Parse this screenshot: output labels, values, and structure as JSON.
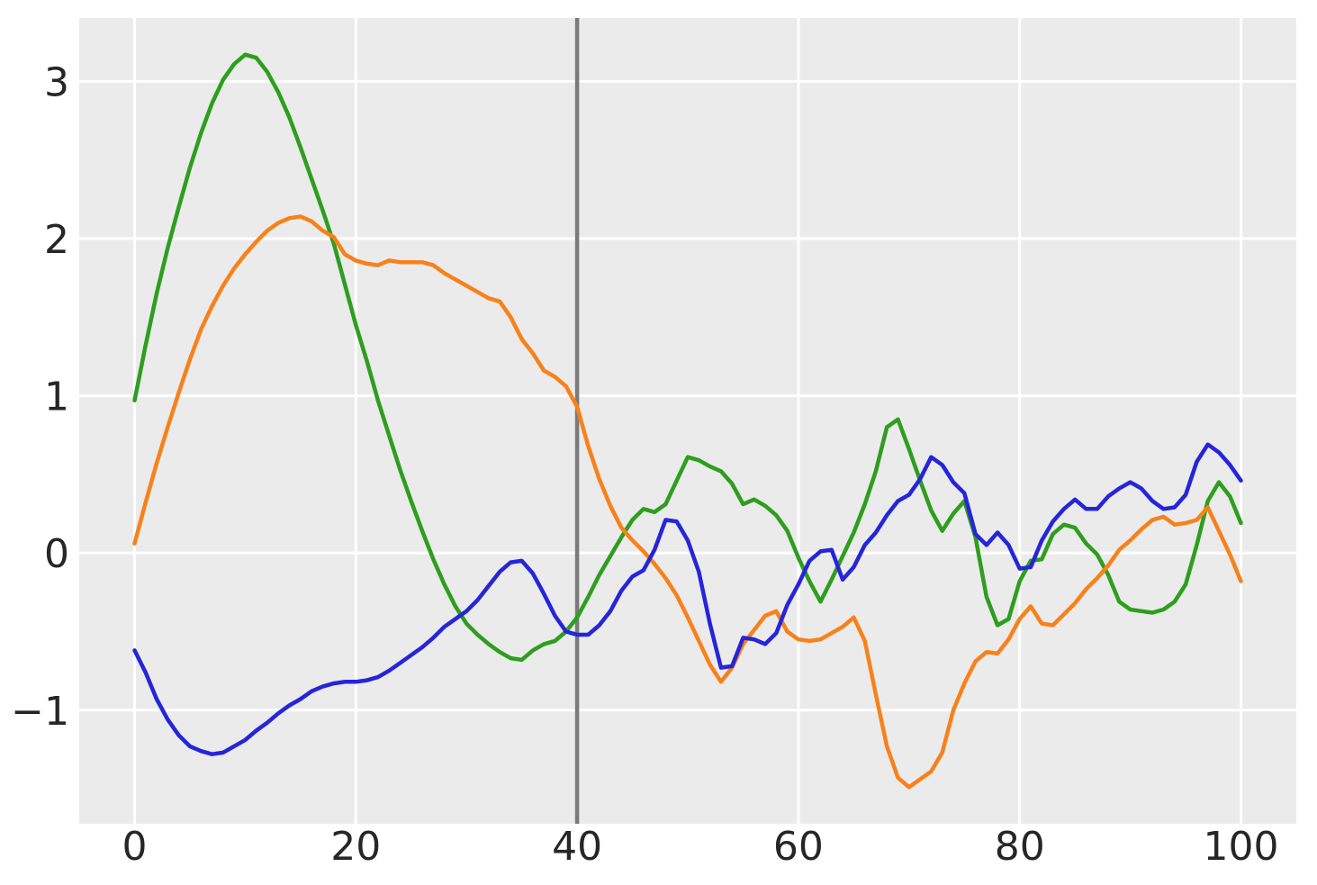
{
  "figure": {
    "background": "#ffffff",
    "plot_background": "#ebebeb",
    "grid_color": "#ffffff",
    "tick_label_color": "#262626",
    "title": ""
  },
  "chart_data": {
    "type": "line",
    "title": "",
    "xlabel": "",
    "ylabel": "",
    "grid": true,
    "legend": false,
    "xlim": [
      -5,
      105
    ],
    "ylim": [
      -1.723,
      3.403
    ],
    "x_ticks": [
      0,
      20,
      40,
      60,
      80,
      100
    ],
    "x_tick_labels": [
      "0",
      "20",
      "40",
      "60",
      "80",
      "100"
    ],
    "y_ticks": [
      -1,
      0,
      1,
      2,
      3
    ],
    "y_tick_labels": [
      "−1",
      "0",
      "1",
      "2",
      "3"
    ],
    "vline": {
      "x": 40,
      "color": "#7a7a7a",
      "width": 4.5
    },
    "line_width": 4.5,
    "x": [
      0,
      1,
      2,
      3,
      4,
      5,
      6,
      7,
      8,
      9,
      10,
      11,
      12,
      13,
      14,
      15,
      16,
      17,
      18,
      19,
      20,
      21,
      22,
      23,
      24,
      25,
      26,
      27,
      28,
      29,
      30,
      31,
      32,
      33,
      34,
      35,
      36,
      37,
      38,
      39,
      40,
      41,
      42,
      43,
      44,
      45,
      46,
      47,
      48,
      49,
      50,
      51,
      52,
      53,
      54,
      55,
      56,
      57,
      58,
      59,
      60,
      61,
      62,
      63,
      64,
      65,
      66,
      67,
      68,
      69,
      70,
      71,
      72,
      73,
      74,
      75,
      76,
      77,
      78,
      79,
      80,
      81,
      82,
      83,
      84,
      85,
      86,
      87,
      88,
      89,
      90,
      91,
      92,
      93,
      94,
      95,
      96,
      97,
      98,
      99,
      100
    ],
    "series": [
      {
        "name": "green",
        "color": "#2E9E1E",
        "values": [
          0.97,
          1.32,
          1.65,
          1.94,
          2.2,
          2.45,
          2.67,
          2.86,
          3.01,
          3.11,
          3.17,
          3.15,
          3.06,
          2.93,
          2.77,
          2.58,
          2.38,
          2.18,
          1.97,
          1.71,
          1.45,
          1.22,
          0.97,
          0.75,
          0.53,
          0.33,
          0.14,
          -0.04,
          -0.2,
          -0.34,
          -0.45,
          -0.52,
          -0.58,
          -0.63,
          -0.67,
          -0.68,
          -0.62,
          -0.58,
          -0.56,
          -0.5,
          -0.41,
          -0.28,
          -0.14,
          -0.02,
          0.1,
          0.21,
          0.28,
          0.26,
          0.31,
          0.46,
          0.61,
          0.59,
          0.55,
          0.52,
          0.44,
          0.31,
          0.34,
          0.3,
          0.24,
          0.14,
          -0.03,
          -0.18,
          -0.31,
          -0.17,
          -0.02,
          0.13,
          0.31,
          0.52,
          0.8,
          0.85,
          0.66,
          0.46,
          0.27,
          0.14,
          0.25,
          0.33,
          0.1,
          -0.28,
          -0.46,
          -0.42,
          -0.18,
          -0.05,
          -0.04,
          0.12,
          0.18,
          0.16,
          0.06,
          -0.01,
          -0.14,
          -0.31,
          -0.36,
          -0.37,
          -0.38,
          -0.36,
          -0.31,
          -0.2,
          0.05,
          0.33,
          0.45,
          0.36,
          0.19
        ]
      },
      {
        "name": "orange",
        "color": "#F8811B",
        "values": [
          0.06,
          0.32,
          0.57,
          0.8,
          1.02,
          1.23,
          1.42,
          1.57,
          1.7,
          1.81,
          1.9,
          1.98,
          2.05,
          2.1,
          2.13,
          2.14,
          2.11,
          2.05,
          2.01,
          1.9,
          1.86,
          1.84,
          1.83,
          1.86,
          1.85,
          1.85,
          1.85,
          1.83,
          1.78,
          1.74,
          1.7,
          1.66,
          1.62,
          1.6,
          1.5,
          1.36,
          1.27,
          1.16,
          1.12,
          1.06,
          0.93,
          0.68,
          0.47,
          0.3,
          0.16,
          0.08,
          0.01,
          -0.07,
          -0.16,
          -0.27,
          -0.41,
          -0.56,
          -0.71,
          -0.82,
          -0.73,
          -0.58,
          -0.49,
          -0.4,
          -0.37,
          -0.5,
          -0.55,
          -0.56,
          -0.55,
          -0.51,
          -0.47,
          -0.41,
          -0.56,
          -0.9,
          -1.23,
          -1.43,
          -1.49,
          -1.44,
          -1.39,
          -1.27,
          -1.0,
          -0.83,
          -0.69,
          -0.63,
          -0.64,
          -0.55,
          -0.42,
          -0.34,
          -0.45,
          -0.46,
          -0.39,
          -0.32,
          -0.23,
          -0.16,
          -0.08,
          0.02,
          0.08,
          0.15,
          0.21,
          0.23,
          0.18,
          0.19,
          0.21,
          0.29,
          0.14,
          -0.01,
          -0.18
        ]
      },
      {
        "name": "blue",
        "color": "#2525DA",
        "values": [
          -0.62,
          -0.76,
          -0.93,
          -1.06,
          -1.16,
          -1.23,
          -1.26,
          -1.28,
          -1.27,
          -1.23,
          -1.19,
          -1.13,
          -1.08,
          -1.02,
          -0.97,
          -0.93,
          -0.88,
          -0.85,
          -0.83,
          -0.82,
          -0.82,
          -0.81,
          -0.79,
          -0.75,
          -0.7,
          -0.65,
          -0.6,
          -0.54,
          -0.47,
          -0.42,
          -0.37,
          -0.3,
          -0.21,
          -0.12,
          -0.06,
          -0.05,
          -0.13,
          -0.26,
          -0.4,
          -0.5,
          -0.52,
          -0.52,
          -0.46,
          -0.37,
          -0.24,
          -0.15,
          -0.11,
          0.02,
          0.21,
          0.2,
          0.08,
          -0.12,
          -0.45,
          -0.73,
          -0.72,
          -0.54,
          -0.55,
          -0.58,
          -0.51,
          -0.33,
          -0.2,
          -0.05,
          0.01,
          0.02,
          -0.17,
          -0.09,
          0.05,
          0.13,
          0.24,
          0.33,
          0.37,
          0.47,
          0.61,
          0.56,
          0.45,
          0.38,
          0.12,
          0.05,
          0.13,
          0.05,
          -0.1,
          -0.09,
          0.08,
          0.2,
          0.28,
          0.34,
          0.28,
          0.28,
          0.36,
          0.41,
          0.45,
          0.41,
          0.33,
          0.28,
          0.29,
          0.37,
          0.58,
          0.69,
          0.64,
          0.56,
          0.46
        ]
      }
    ]
  }
}
